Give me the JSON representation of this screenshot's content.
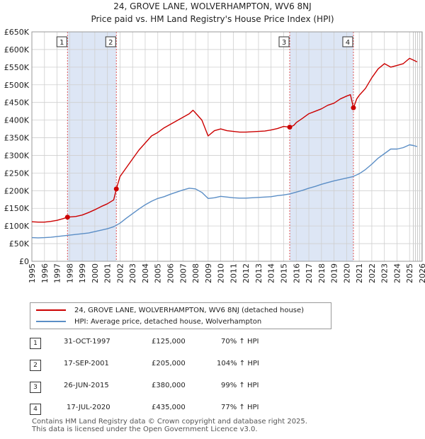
{
  "title": {
    "line1": "24, GROVE LANE, WOLVERHAMPTON, WV6 8NJ",
    "line2": "Price paid vs. HM Land Registry's House Price Index (HPI)"
  },
  "colors": {
    "property": "#cc0000",
    "hpi": "#5b8ec6",
    "band": "#dde6f5",
    "grid": "#cfcfcf",
    "marker_line": "#e05555"
  },
  "chart_data": {
    "type": "line",
    "title": "24, GROVE LANE, WOLVERHAMPTON, WV6 8NJ",
    "subtitle": "Price paid vs. HM Land Registry's House Price Index (HPI)",
    "xlabel": "",
    "ylabel": "",
    "xlim": [
      1995,
      2026
    ],
    "ylim": [
      0,
      650000
    ],
    "x_ticks": [
      1995,
      1996,
      1997,
      1998,
      1999,
      2000,
      2001,
      2002,
      2003,
      2004,
      2005,
      2006,
      2007,
      2008,
      2009,
      2010,
      2011,
      2012,
      2013,
      2014,
      2015,
      2016,
      2017,
      2018,
      2019,
      2020,
      2021,
      2022,
      2023,
      2024,
      2025,
      2026
    ],
    "y_ticks": [
      0,
      50000,
      100000,
      150000,
      200000,
      250000,
      300000,
      350000,
      400000,
      450000,
      500000,
      550000,
      600000,
      650000
    ],
    "y_tick_labels": [
      "£0",
      "£50K",
      "£100K",
      "£150K",
      "£200K",
      "£250K",
      "£300K",
      "£350K",
      "£400K",
      "£450K",
      "£500K",
      "£550K",
      "£600K",
      "£650K"
    ],
    "grid": true,
    "shaded_periods": [
      [
        1997.83,
        2001.71
      ],
      [
        2015.48,
        2020.54
      ]
    ],
    "forecast_after": 2025.3,
    "series": [
      {
        "name": "24, GROVE LANE, WOLVERHAMPTON, WV6 8NJ (detached house)",
        "x": [
          1995.0,
          1995.5,
          1996.0,
          1996.5,
          1997.0,
          1997.5,
          1997.83,
          1998.5,
          1999.0,
          1999.5,
          2000.0,
          2000.5,
          2001.0,
          2001.5,
          2001.71,
          2002.0,
          2002.5,
          2003.0,
          2003.5,
          2004.0,
          2004.5,
          2005.0,
          2005.5,
          2006.0,
          2006.5,
          2007.0,
          2007.5,
          2007.8,
          2008.0,
          2008.5,
          2009.0,
          2009.5,
          2010.0,
          2010.5,
          2011.0,
          2011.5,
          2012.0,
          2012.5,
          2013.0,
          2013.5,
          2014.0,
          2014.5,
          2015.0,
          2015.48,
          2015.8,
          2016.0,
          2016.5,
          2017.0,
          2017.5,
          2018.0,
          2018.5,
          2019.0,
          2019.5,
          2020.0,
          2020.3,
          2020.54,
          2020.8,
          2021.0,
          2021.5,
          2022.0,
          2022.5,
          2023.0,
          2023.5,
          2024.0,
          2024.5,
          2025.0,
          2025.3,
          2025.6
        ],
        "values": [
          112000,
          111000,
          111000,
          113000,
          116000,
          121000,
          125000,
          127000,
          131000,
          138000,
          146000,
          155000,
          163000,
          174000,
          205000,
          240000,
          265000,
          290000,
          315000,
          335000,
          355000,
          365000,
          378000,
          388000,
          398000,
          408000,
          418000,
          428000,
          420000,
          400000,
          355000,
          370000,
          375000,
          370000,
          368000,
          366000,
          366000,
          367000,
          368000,
          369000,
          372000,
          376000,
          382000,
          380000,
          385000,
          393000,
          405000,
          418000,
          425000,
          432000,
          442000,
          448000,
          460000,
          468000,
          472000,
          435000,
          460000,
          470000,
          490000,
          520000,
          545000,
          560000,
          550000,
          555000,
          560000,
          575000,
          570000,
          565000
        ]
      },
      {
        "name": "HPI: Average price, detached house, Wolverhampton",
        "x": [
          1995.0,
          1995.5,
          1996.0,
          1996.5,
          1997.0,
          1997.5,
          1998.0,
          1998.5,
          1999.0,
          1999.5,
          2000.0,
          2000.5,
          2001.0,
          2001.5,
          2002.0,
          2002.5,
          2003.0,
          2003.5,
          2004.0,
          2004.5,
          2005.0,
          2005.5,
          2006.0,
          2006.5,
          2007.0,
          2007.5,
          2008.0,
          2008.5,
          2009.0,
          2009.5,
          2010.0,
          2010.5,
          2011.0,
          2011.5,
          2012.0,
          2012.5,
          2013.0,
          2013.5,
          2014.0,
          2014.5,
          2015.0,
          2015.5,
          2016.0,
          2016.5,
          2017.0,
          2017.5,
          2018.0,
          2018.5,
          2019.0,
          2019.5,
          2020.0,
          2020.5,
          2021.0,
          2021.5,
          2022.0,
          2022.5,
          2023.0,
          2023.5,
          2024.0,
          2024.5,
          2025.0,
          2025.3,
          2025.6
        ],
        "values": [
          67000,
          66500,
          67000,
          68000,
          70000,
          72000,
          74000,
          76000,
          78000,
          80000,
          84000,
          88000,
          92000,
          98000,
          108000,
          122000,
          135000,
          148000,
          160000,
          170000,
          178000,
          183000,
          190000,
          196000,
          202000,
          207000,
          205000,
          195000,
          178000,
          180000,
          184000,
          182000,
          180000,
          179000,
          179000,
          180000,
          181000,
          182000,
          183000,
          186000,
          188000,
          191000,
          196000,
          201000,
          207000,
          212000,
          218000,
          223000,
          228000,
          232000,
          236000,
          240000,
          248000,
          260000,
          275000,
          292000,
          305000,
          318000,
          318000,
          322000,
          330000,
          328000,
          325000
        ]
      }
    ],
    "annotations": [
      {
        "label": "1",
        "x": 1997.83,
        "y": 125000
      },
      {
        "label": "2",
        "x": 2001.71,
        "y": 205000
      },
      {
        "label": "3",
        "x": 2015.48,
        "y": 380000
      },
      {
        "label": "4",
        "x": 2020.54,
        "y": 435000
      }
    ]
  },
  "legend": {
    "property_label": "24, GROVE LANE, WOLVERHAMPTON, WV6 8NJ (detached house)",
    "hpi_label": "HPI: Average price, detached house, Wolverhampton"
  },
  "sales": [
    {
      "num": "1",
      "date": "31-OCT-1997",
      "price": "£125,000",
      "pct": "70% ↑ HPI"
    },
    {
      "num": "2",
      "date": "17-SEP-2001",
      "price": "£205,000",
      "pct": "104% ↑ HPI"
    },
    {
      "num": "3",
      "date": "26-JUN-2015",
      "price": "£380,000",
      "pct": "99% ↑ HPI"
    },
    {
      "num": "4",
      "date": "17-JUL-2020",
      "price": "£435,000",
      "pct": "77% ↑ HPI"
    }
  ],
  "footer": {
    "line1": "Contains HM Land Registry data © Crown copyright and database right 2025.",
    "line2": "This data is licensed under the Open Government Licence v3.0."
  }
}
